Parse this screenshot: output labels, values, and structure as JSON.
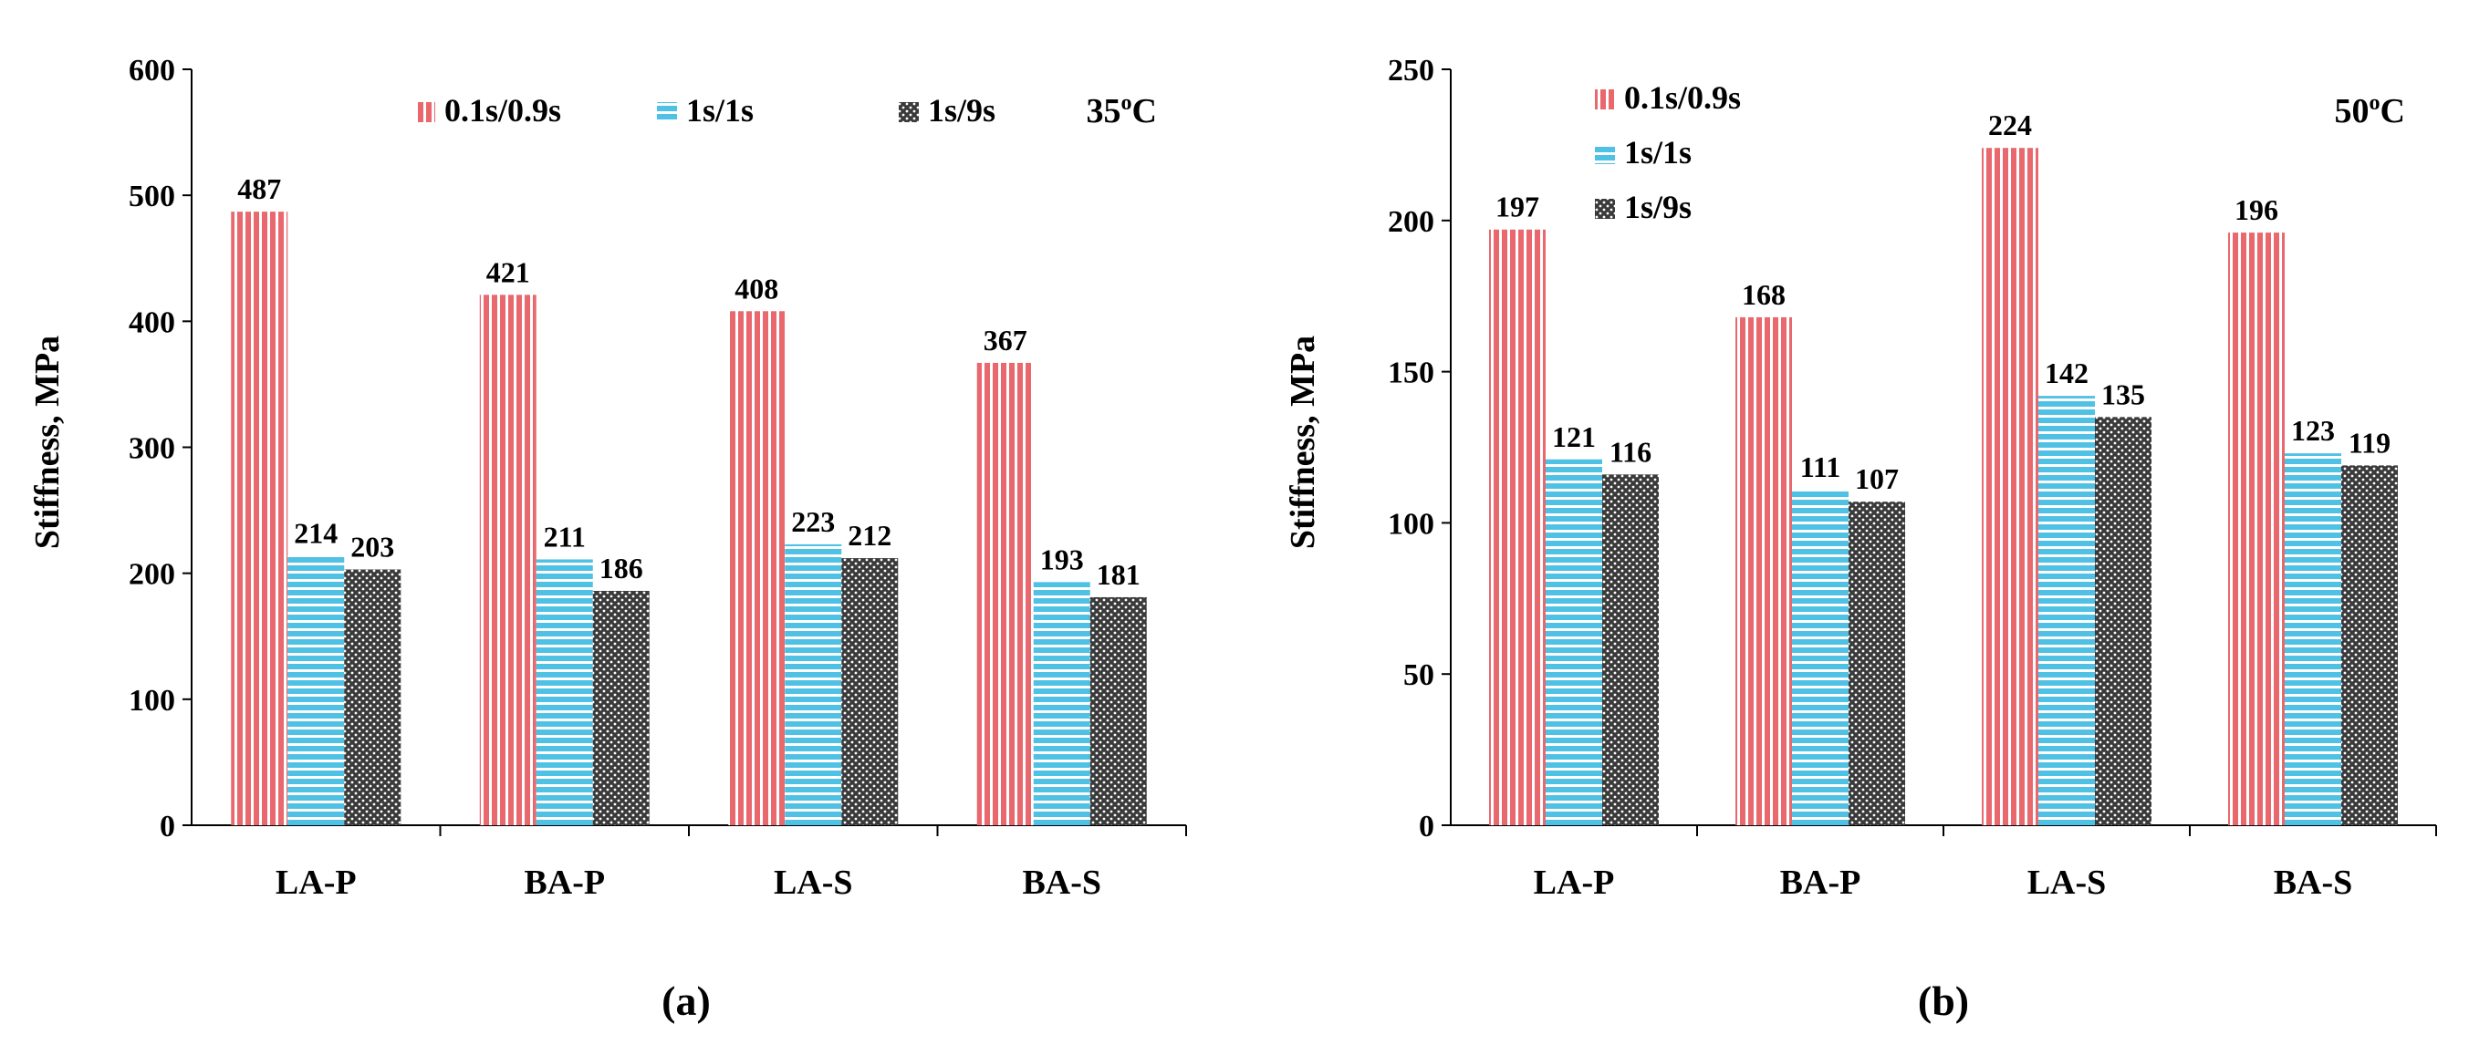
{
  "chart_data": [
    {
      "type": "bar",
      "panel_label": "(a)",
      "title": "",
      "annotation": {
        "text": "35",
        "sup": "o",
        "unit": "C"
      },
      "xlabel": "",
      "ylabel": "Stiffness, MPa",
      "ylim": [
        0,
        600
      ],
      "yticks": [
        0,
        100,
        200,
        300,
        400,
        500,
        600
      ],
      "categories": [
        "LA-P",
        "BA-P",
        "LA-S",
        "BA-S"
      ],
      "series": [
        {
          "name": "0.1s/0.9s",
          "values": [
            487,
            421,
            408,
            367
          ]
        },
        {
          "name": "1s/1s",
          "values": [
            214,
            211,
            223,
            193
          ]
        },
        {
          "name": "1s/9s",
          "values": [
            203,
            186,
            212,
            181
          ]
        }
      ],
      "legend": "top, horizontal"
    },
    {
      "type": "bar",
      "panel_label": "(b)",
      "title": "",
      "annotation": {
        "text": "50",
        "sup": "o",
        "unit": "C"
      },
      "xlabel": "",
      "ylabel": "Stiffness, MPa",
      "ylim": [
        0,
        250
      ],
      "yticks": [
        0,
        50,
        100,
        150,
        200,
        250
      ],
      "categories": [
        "LA-P",
        "BA-P",
        "LA-S",
        "BA-S"
      ],
      "series": [
        {
          "name": "0.1s/0.9s",
          "values": [
            197,
            168,
            224,
            196
          ]
        },
        {
          "name": "1s/1s",
          "values": [
            121,
            111,
            142,
            123
          ]
        },
        {
          "name": "1s/9s",
          "values": [
            116,
            107,
            135,
            119
          ]
        }
      ],
      "legend": "top-left, vertical"
    }
  ],
  "colors": {
    "series_0_fill": "#e8686e",
    "series_0_line": "#ffffff",
    "series_1_fill": "#4fc1e4",
    "series_1_line": "#ffffff",
    "series_2_fill": "#3a3a3a",
    "series_2_dot": "#ffffff",
    "axis": "#000000"
  }
}
